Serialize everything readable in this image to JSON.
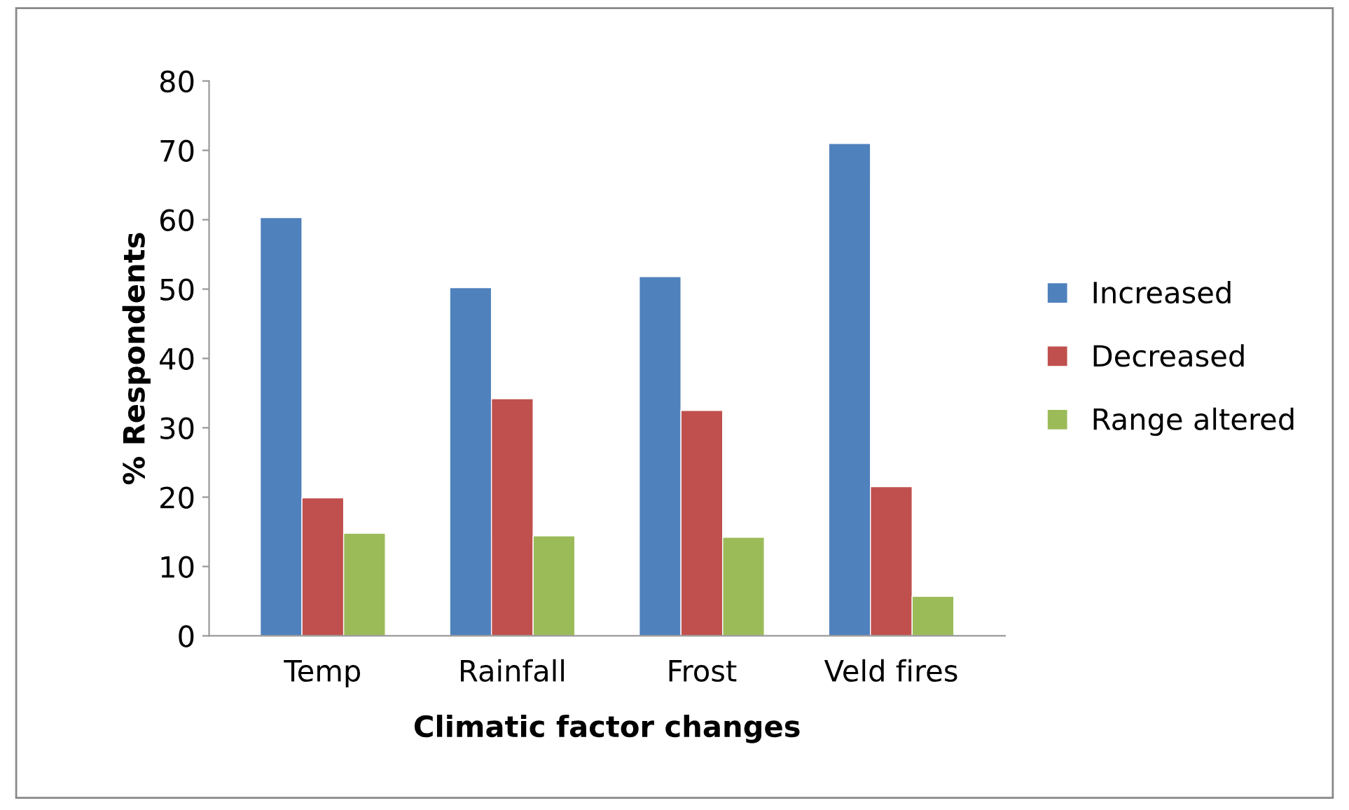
{
  "chart_data": {
    "type": "bar",
    "xlabel": "Climatic factor changes",
    "ylabel": "% Respondents",
    "categories": [
      "Temp",
      "Rainfall",
      "Frost",
      "Veld fires"
    ],
    "series": [
      {
        "name": "Increased",
        "color": "#4f81bd",
        "values": [
          60.3,
          50.2,
          51.8,
          71
        ]
      },
      {
        "name": "Decreased",
        "color": "#c0504d",
        "values": [
          19.9,
          34.2,
          32.5,
          21.5
        ]
      },
      {
        "name": "Range altered",
        "color": "#9bbb59",
        "values": [
          14.8,
          14.4,
          14.2,
          5.7
        ]
      }
    ],
    "ylim": [
      0,
      80
    ],
    "yticks": [
      0,
      10,
      20,
      30,
      40,
      50,
      60,
      70,
      80
    ],
    "grid": false,
    "legend": "right"
  }
}
